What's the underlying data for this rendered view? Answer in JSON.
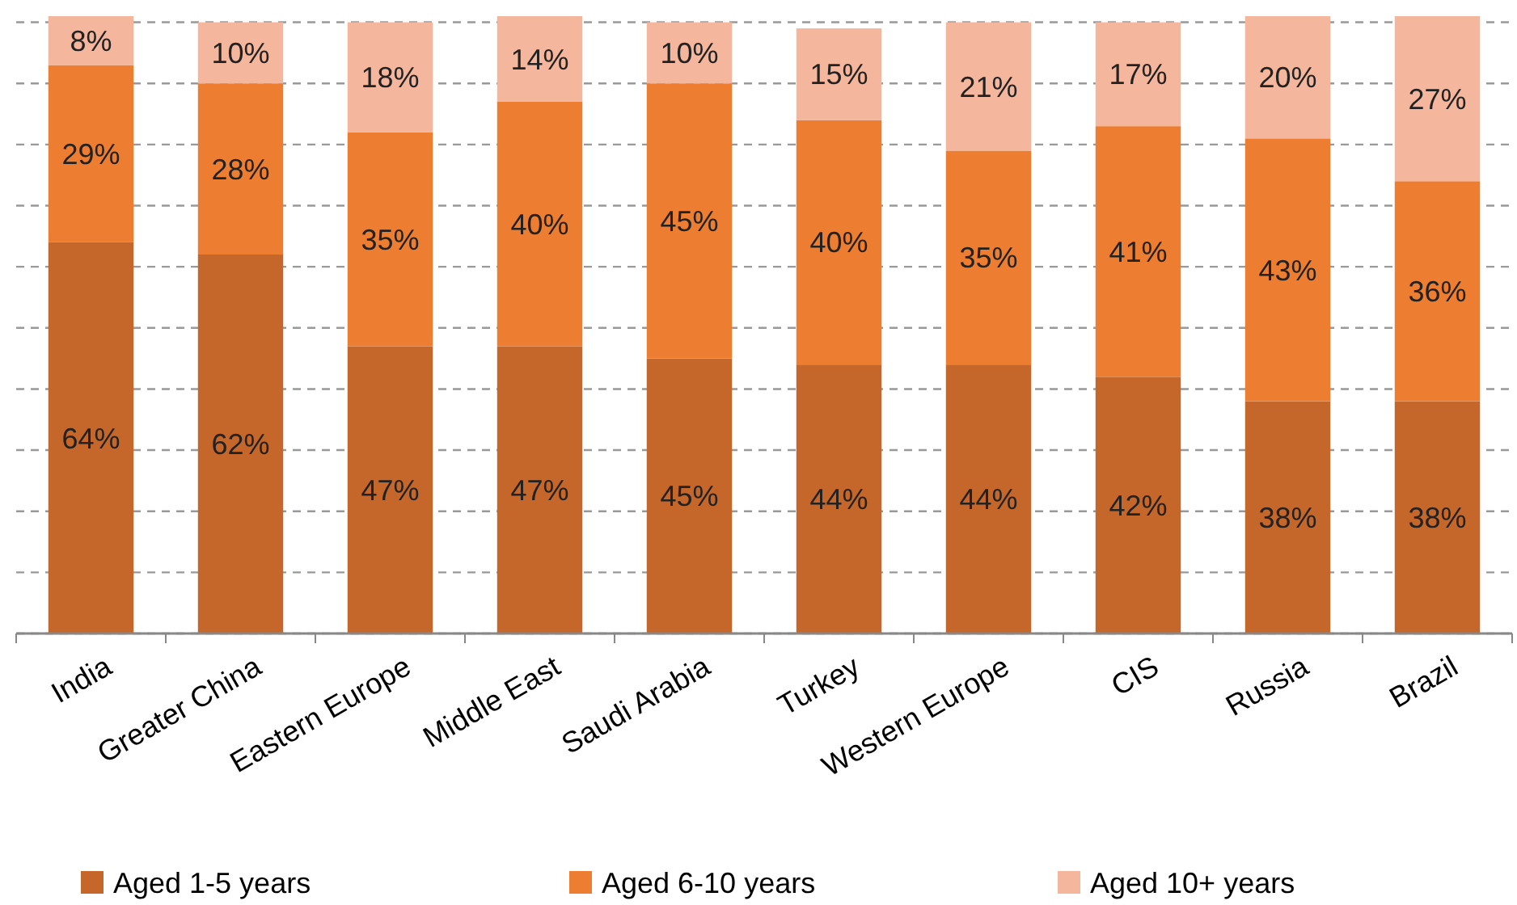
{
  "chart_data": {
    "type": "bar",
    "stacked": true,
    "grid": "y",
    "legend": "bottom",
    "categories": [
      "India",
      "Greater China",
      "Eastern Europe",
      "Middle East",
      "Saudi Arabia",
      "Turkey",
      "Western Europe",
      "CIS",
      "Russia",
      "Brazil"
    ],
    "ylim": [
      0,
      101
    ],
    "yticks": [
      {
        "value": 0,
        "label": null
      },
      {
        "value": 10,
        "label": null
      },
      {
        "value": 20,
        "label": null
      },
      {
        "value": 30,
        "label": null
      },
      {
        "value": 40,
        "label": null
      },
      {
        "value": 50,
        "label": null
      },
      {
        "value": 60,
        "label": null
      },
      {
        "value": 70,
        "label": null
      },
      {
        "value": 80,
        "label": null
      },
      {
        "value": 90,
        "label": null
      },
      {
        "value": 100,
        "label": null
      }
    ],
    "tick_labels": "x",
    "series": [
      {
        "name": "Aged 1-5 years",
        "color": "#c5662a",
        "values": [
          64,
          62,
          47,
          47,
          45,
          44,
          44,
          42,
          38,
          38
        ],
        "value_labels": [
          "64%",
          "62%",
          "47%",
          "47%",
          "45%",
          "44%",
          "44%",
          "42%",
          "38%",
          "38%"
        ]
      },
      {
        "name": "Aged 6-10 years",
        "color": "#ed7d31",
        "values": [
          29,
          28,
          35,
          40,
          45,
          40,
          35,
          41,
          43,
          36
        ],
        "value_labels": [
          "29%",
          "28%",
          "35%",
          "40%",
          "45%",
          "40%",
          "35%",
          "41%",
          "43%",
          "36%"
        ]
      },
      {
        "name": "Aged 10+ years",
        "color": "#f4b69c",
        "values": [
          8,
          10,
          18,
          14,
          10,
          15,
          21,
          17,
          20,
          27
        ],
        "value_labels": [
          "8%",
          "10%",
          "18%",
          "14%",
          "10%",
          "15%",
          "21%",
          "17%",
          "20%",
          "27%"
        ]
      }
    ]
  }
}
